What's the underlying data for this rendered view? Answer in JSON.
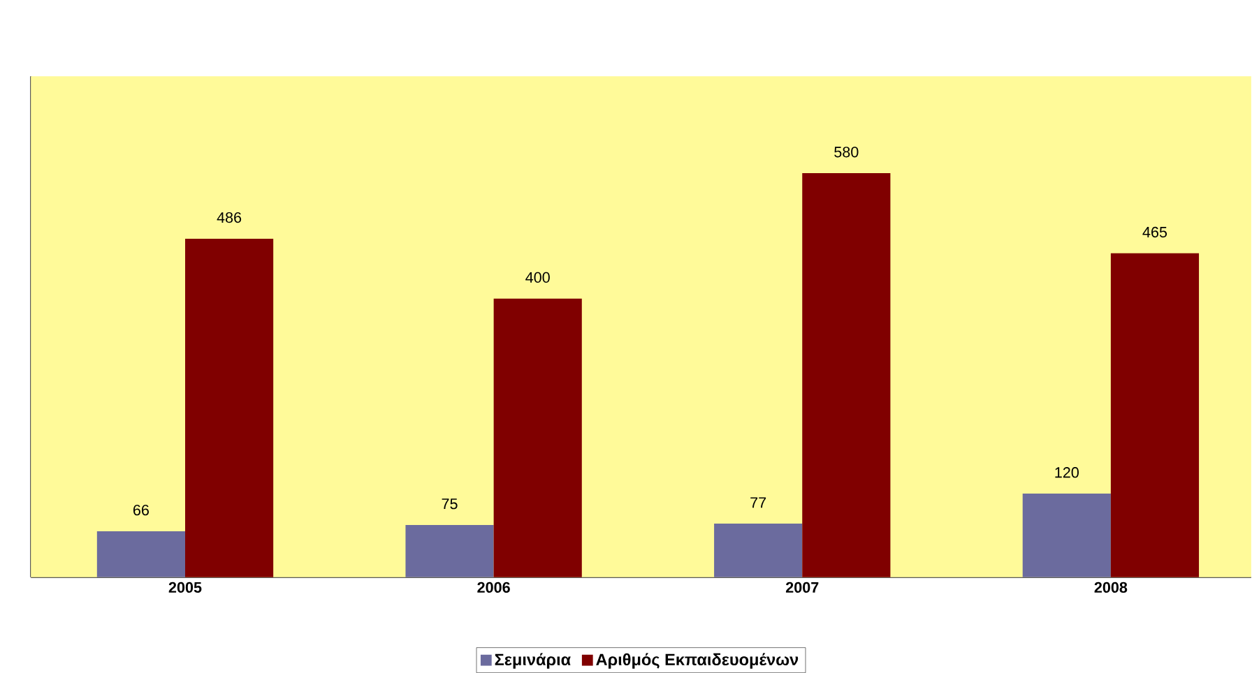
{
  "chart_data": {
    "type": "bar",
    "categories": [
      "2005",
      "2006",
      "2007",
      "2008"
    ],
    "series": [
      {
        "name": "Σεμινάρια",
        "color": "#6b6b9e",
        "values": [
          66,
          75,
          77,
          120
        ]
      },
      {
        "name": "Αριθμός Εκπαιδευομένων",
        "color": "#800000",
        "values": [
          486,
          400,
          580,
          465
        ]
      }
    ],
    "data_labels": true,
    "legend": "bottom"
  }
}
